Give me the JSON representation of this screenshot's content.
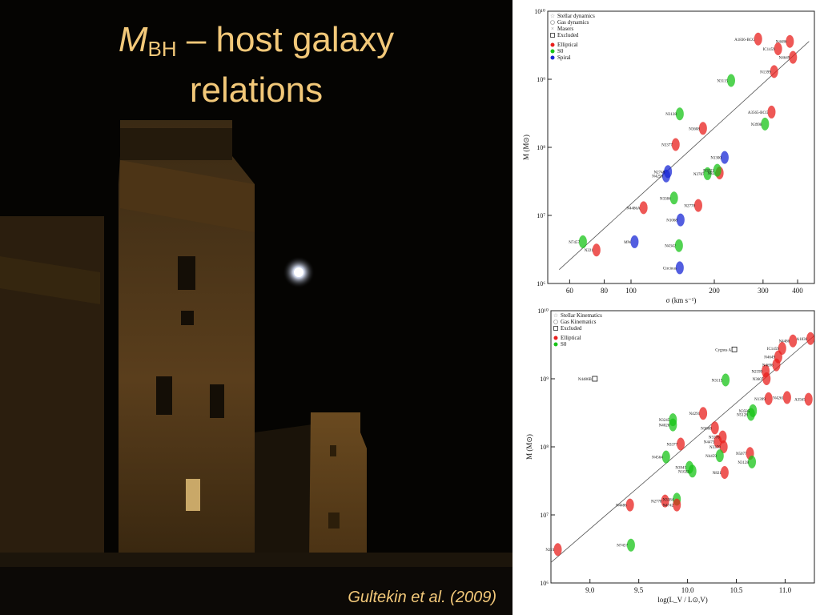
{
  "slide": {
    "title_sym": "M",
    "title_sub": "BH",
    "title_rest": " – host galaxy",
    "title_line2": "relations",
    "citation": "Gultekin et al. (2009)"
  },
  "colors": {
    "title": "#f2c879",
    "elliptical": "#e8201e",
    "s0": "#18c418",
    "spiral": "#1a28d6"
  },
  "chart_data": [
    {
      "type": "scatter",
      "xlabel": "σ (km s⁻¹)",
      "ylabel": "M (M⊙)",
      "xscale": "log",
      "yscale": "log",
      "xlim": [
        50,
        460
      ],
      "ylim": [
        1000000.0,
        10000000000.0
      ],
      "xticks": [
        "60",
        "80",
        "100",
        "200",
        "300",
        "400"
      ],
      "yticks": [
        "10⁶",
        "10⁷",
        "10⁸",
        "10⁹",
        "10¹⁰"
      ],
      "legend": [
        "Stellar dynamics",
        "Gas dynamics",
        "Masers",
        "Excluded",
        "Elliptical",
        "S0",
        "Spiral"
      ],
      "legend_position": "top-left",
      "fit_line": [
        [
          55,
          1600000.0
        ],
        [
          440,
          3600000000.0
        ]
      ],
      "points": [
        {
          "label": "N7457",
          "x": 67,
          "y": 4100000.0,
          "cls": "S0"
        },
        {
          "label": "N221",
          "x": 75,
          "y": 3100000.0,
          "cls": "Elliptical"
        },
        {
          "label": "MW",
          "x": 103,
          "y": 4100000.0,
          "cls": "Spiral"
        },
        {
          "label": "Circinus",
          "x": 150,
          "y": 1700000.0,
          "cls": "Spiral"
        },
        {
          "label": "N1068",
          "x": 151,
          "y": 8600000.0,
          "cls": "Spiral"
        },
        {
          "label": "N4342",
          "x": 149,
          "y": 3600000.0,
          "cls": "S0"
        },
        {
          "label": "N4486A",
          "x": 111,
          "y": 13000000.0,
          "cls": "Elliptical"
        },
        {
          "label": "N4258",
          "x": 134,
          "y": 38000000.0,
          "cls": "Spiral"
        },
        {
          "label": "N2748",
          "x": 136,
          "y": 44000000.0,
          "cls": "Spiral"
        },
        {
          "label": "N2778",
          "x": 175,
          "y": 14000000.0,
          "cls": "Elliptical"
        },
        {
          "label": "N3384",
          "x": 143,
          "y": 18000000.0,
          "cls": "S0"
        },
        {
          "label": "N2787",
          "x": 189,
          "y": 41000000.0,
          "cls": "S0"
        },
        {
          "label": "N821",
          "x": 209,
          "y": 42000000.0,
          "cls": "Elliptical"
        },
        {
          "label": "N1300",
          "x": 218,
          "y": 71000000.0,
          "cls": "Spiral"
        },
        {
          "label": "N1023",
          "x": 205,
          "y": 46000000.0,
          "cls": "S0"
        },
        {
          "label": "N3377",
          "x": 145,
          "y": 110000000.0,
          "cls": "Elliptical"
        },
        {
          "label": "N3608",
          "x": 182,
          "y": 190000000.0,
          "cls": "Elliptical"
        },
        {
          "label": "N3998",
          "x": 305,
          "y": 220000000.0,
          "cls": "S0"
        },
        {
          "label": "N3128",
          "x": 150,
          "y": 310000000.0,
          "cls": "S0"
        },
        {
          "label": "N3115",
          "x": 230,
          "y": 960000000.0,
          "cls": "S0"
        },
        {
          "label": "N1399",
          "x": 329,
          "y": 1300000000.0,
          "cls": "Elliptical"
        },
        {
          "label": "A3565-BCG",
          "x": 322,
          "y": 330000000.0,
          "cls": "Elliptical"
        },
        {
          "label": "A1836-BCG",
          "x": 288,
          "y": 3900000000.0,
          "cls": "Elliptical"
        },
        {
          "label": "N4486",
          "x": 375,
          "y": 3600000000.0,
          "cls": "Elliptical"
        },
        {
          "label": "IC1459",
          "x": 340,
          "y": 2800000000.0,
          "cls": "Elliptical"
        },
        {
          "label": "N4649",
          "x": 385,
          "y": 2100000000.0,
          "cls": "Elliptical"
        }
      ]
    },
    {
      "type": "scatter",
      "xlabel": "log(L_V / L⊙,V)",
      "ylabel": "M (M⊙)",
      "yscale": "log",
      "xlim": [
        8.6,
        11.3
      ],
      "ylim": [
        1000000.0,
        10000000000.0
      ],
      "xticks": [
        "9.0",
        "9.5",
        "10.0",
        "10.5",
        "11.0"
      ],
      "yticks": [
        "10⁶",
        "10⁷",
        "10⁸",
        "10⁹",
        "10¹⁰"
      ],
      "legend": [
        "Stellar Kinematics",
        "Gas Kinematics",
        "Excluded",
        "Elliptical",
        "S0"
      ],
      "legend_position": "top-left",
      "fit_line": [
        [
          8.6,
          2000000.0
        ],
        [
          11.3,
          4300000000.0
        ]
      ],
      "points": [
        {
          "label": "N221",
          "x": 8.67,
          "y": 3100000.0,
          "cls": "Elliptical"
        },
        {
          "label": "N7457",
          "x": 9.42,
          "y": 3600000.0,
          "cls": "S0"
        },
        {
          "label": "N4486B",
          "x": 9.05,
          "y": 1000000000.0,
          "cls": "Excluded"
        },
        {
          "label": "N4486",
          "x": 9.41,
          "y": 14000000.0,
          "cls": "Elliptical"
        },
        {
          "label": "N4564",
          "x": 9.78,
          "y": 71000000.0,
          "cls": "S0"
        },
        {
          "label": "N2778",
          "x": 9.77,
          "y": 16000000.0,
          "cls": "Elliptical"
        },
        {
          "label": "N3384",
          "x": 9.89,
          "y": 17000000.0,
          "cls": "S0"
        },
        {
          "label": "N4742",
          "x": 9.89,
          "y": 14000000.0,
          "cls": "Elliptical"
        },
        {
          "label": "N3377",
          "x": 9.93,
          "y": 110000000.0,
          "cls": "Elliptical"
        },
        {
          "label": "N3945",
          "x": 10.02,
          "y": 50000000.0,
          "cls": "S0"
        },
        {
          "label": "N1023",
          "x": 10.05,
          "y": 44000000.0,
          "cls": "S0"
        },
        {
          "label": "N3245",
          "x": 9.85,
          "y": 250000000.0,
          "cls": "S0"
        },
        {
          "label": "N4026",
          "x": 9.85,
          "y": 210000000.0,
          "cls": "S0"
        },
        {
          "label": "N4291",
          "x": 10.16,
          "y": 310000000.0,
          "cls": "Elliptical"
        },
        {
          "label": "N3608",
          "x": 10.28,
          "y": 190000000.0,
          "cls": "Elliptical"
        },
        {
          "label": "N4473",
          "x": 10.31,
          "y": 120000000.0,
          "cls": "Elliptical"
        },
        {
          "label": "N5576",
          "x": 10.36,
          "y": 140000000.0,
          "cls": "Elliptical"
        },
        {
          "label": "N3379",
          "x": 10.37,
          "y": 100000000.0,
          "cls": "Elliptical"
        },
        {
          "label": "N821",
          "x": 10.38,
          "y": 42000000.0,
          "cls": "Elliptical"
        },
        {
          "label": "N3115",
          "x": 10.39,
          "y": 960000000.0,
          "cls": "S0"
        },
        {
          "label": "N4459",
          "x": 10.33,
          "y": 74000000.0,
          "cls": "S0"
        },
        {
          "label": "N5077",
          "x": 10.64,
          "y": 80000000.0,
          "cls": "Elliptical"
        },
        {
          "label": "N3128",
          "x": 10.66,
          "y": 60000000.0,
          "cls": "S0"
        },
        {
          "label": "N5128",
          "x": 10.65,
          "y": 300000000.0,
          "cls": "S0"
        },
        {
          "label": "N3585",
          "x": 10.67,
          "y": 340000000.0,
          "cls": "S0"
        },
        {
          "label": "Cygnus A",
          "x": 10.48,
          "y": 2700000000.0,
          "cls": "Excluded"
        },
        {
          "label": "N1399",
          "x": 10.83,
          "y": 510000000.0,
          "cls": "Elliptical"
        },
        {
          "label": "N3607",
          "x": 10.81,
          "y": 1000000000.0,
          "cls": "Elliptical"
        },
        {
          "label": "N2599",
          "x": 10.8,
          "y": 1300000000.0,
          "cls": "Elliptical"
        },
        {
          "label": "N4696",
          "x": 10.91,
          "y": 1600000000.0,
          "cls": "Elliptical"
        },
        {
          "label": "N4649",
          "x": 10.93,
          "y": 2100000000.0,
          "cls": "Elliptical"
        },
        {
          "label": "IC1459",
          "x": 10.97,
          "y": 2800000000.0,
          "cls": "Elliptical"
        },
        {
          "label": "N4486",
          "x": 11.08,
          "y": 3600000000.0,
          "cls": "Elliptical"
        },
        {
          "label": "A1836",
          "x": 11.26,
          "y": 3900000000.0,
          "cls": "Elliptical"
        },
        {
          "label": "N4261",
          "x": 11.02,
          "y": 530000000.0,
          "cls": "Elliptical"
        },
        {
          "label": "A3565",
          "x": 11.24,
          "y": 500000000.0,
          "cls": "Elliptical"
        }
      ]
    }
  ]
}
